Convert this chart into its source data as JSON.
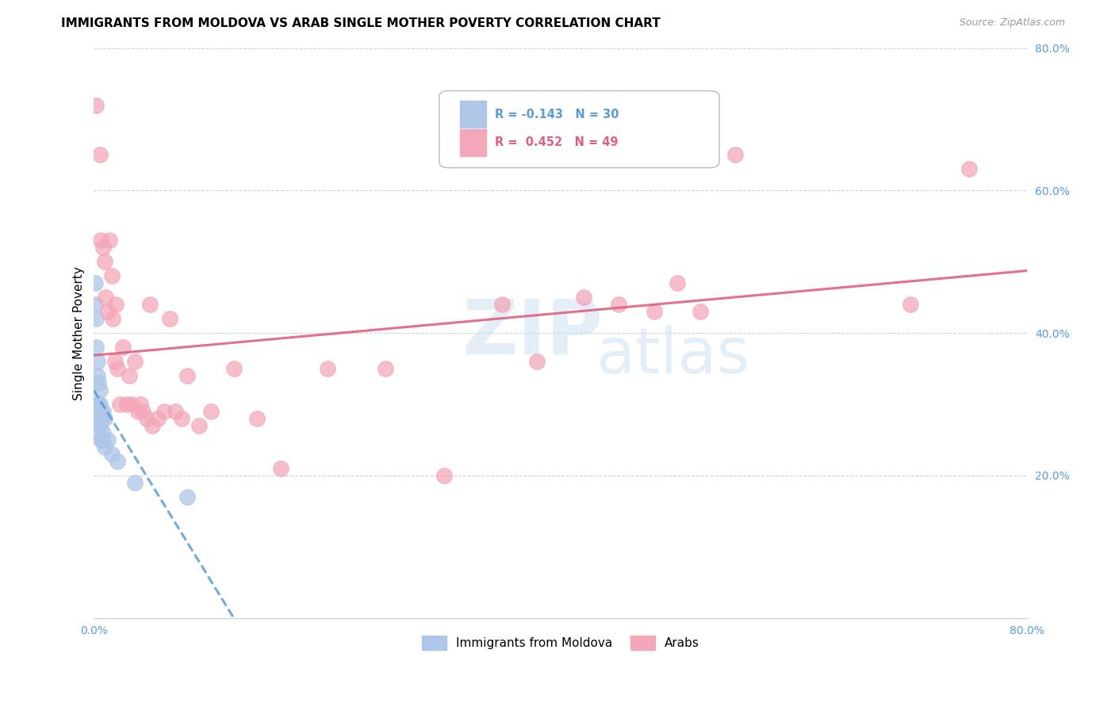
{
  "title": "IMMIGRANTS FROM MOLDOVA VS ARAB SINGLE MOTHER POVERTY CORRELATION CHART",
  "source": "Source: ZipAtlas.com",
  "ylabel": "Single Mother Poverty",
  "x_min": 0.0,
  "x_max": 0.8,
  "y_min": 0.0,
  "y_max": 0.8,
  "y_ticks_right": [
    0.8,
    0.6,
    0.4,
    0.2
  ],
  "y_tick_labels_right": [
    "80.0%",
    "60.0%",
    "40.0%",
    "20.0%"
  ],
  "legend_label_blue": "Immigrants from Moldova",
  "legend_label_pink": "Arabs",
  "blue_color": "#aec6e8",
  "pink_color": "#f4a7b9",
  "blue_line_color": "#5b9bd5",
  "pink_line_color": "#e06080",
  "axis_label_color": "#5b9bd5",
  "grid_color": "#cccccc",
  "moldova_x": [
    0.001,
    0.001,
    0.002,
    0.002,
    0.002,
    0.003,
    0.003,
    0.003,
    0.003,
    0.004,
    0.004,
    0.004,
    0.004,
    0.005,
    0.005,
    0.005,
    0.006,
    0.006,
    0.006,
    0.007,
    0.007,
    0.008,
    0.008,
    0.009,
    0.009,
    0.012,
    0.015,
    0.02,
    0.035,
    0.08
  ],
  "moldova_y": [
    0.47,
    0.44,
    0.42,
    0.38,
    0.3,
    0.36,
    0.34,
    0.3,
    0.29,
    0.33,
    0.3,
    0.28,
    0.26,
    0.32,
    0.3,
    0.27,
    0.29,
    0.28,
    0.25,
    0.28,
    0.25,
    0.29,
    0.26,
    0.28,
    0.24,
    0.25,
    0.23,
    0.22,
    0.19,
    0.17
  ],
  "arab_x": [
    0.002,
    0.005,
    0.006,
    0.008,
    0.009,
    0.01,
    0.012,
    0.013,
    0.015,
    0.016,
    0.018,
    0.019,
    0.02,
    0.022,
    0.025,
    0.028,
    0.03,
    0.032,
    0.035,
    0.038,
    0.04,
    0.042,
    0.045,
    0.048,
    0.05,
    0.055,
    0.06,
    0.065,
    0.07,
    0.075,
    0.08,
    0.09,
    0.1,
    0.12,
    0.14,
    0.16,
    0.2,
    0.25,
    0.3,
    0.35,
    0.38,
    0.42,
    0.45,
    0.48,
    0.5,
    0.52,
    0.55,
    0.7,
    0.75
  ],
  "arab_y": [
    0.72,
    0.65,
    0.53,
    0.52,
    0.5,
    0.45,
    0.43,
    0.53,
    0.48,
    0.42,
    0.36,
    0.44,
    0.35,
    0.3,
    0.38,
    0.3,
    0.34,
    0.3,
    0.36,
    0.29,
    0.3,
    0.29,
    0.28,
    0.44,
    0.27,
    0.28,
    0.29,
    0.42,
    0.29,
    0.28,
    0.34,
    0.27,
    0.29,
    0.35,
    0.28,
    0.21,
    0.35,
    0.35,
    0.2,
    0.44,
    0.36,
    0.45,
    0.44,
    0.43,
    0.47,
    0.43,
    0.65,
    0.44,
    0.63
  ],
  "title_fontsize": 11,
  "source_fontsize": 9
}
